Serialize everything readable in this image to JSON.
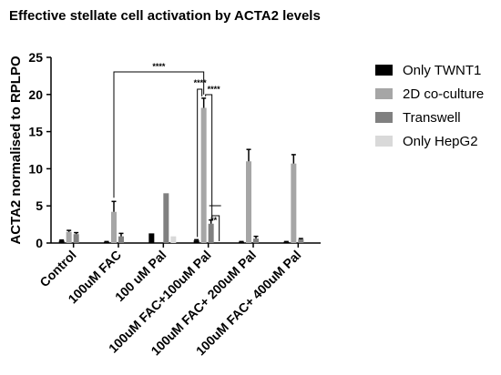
{
  "chart_data": {
    "type": "bar",
    "title": "Effective stellate cell activation by ACTA2 levels",
    "ylabel": "ACTA2 normalised to RPLPO",
    "xlabel": "",
    "ylim": [
      0,
      25
    ],
    "yticks": [
      0,
      5,
      10,
      15,
      20,
      25
    ],
    "grid": false,
    "legend_position": "right",
    "categories": [
      "Control",
      "100uM FAC",
      "100 uM Pal",
      "100uM FAC+100uM Pal",
      "100uM FAC+ 200uM Pal",
      "100uM FAC+ 400uM Pal"
    ],
    "series": [
      {
        "name": "Only TWNT1",
        "color": "#000000",
        "values": [
          0.3,
          0.15,
          1.3,
          0.35,
          0.15,
          0.15
        ],
        "errors": [
          0.1,
          0.05,
          0,
          0.1,
          0.05,
          0.05
        ]
      },
      {
        "name": "2D co-culture",
        "color": "#a6a6a6",
        "values": [
          1.5,
          4.2,
          null,
          18.2,
          11.0,
          10.7
        ],
        "errors": [
          0.2,
          1.4,
          0,
          1.3,
          1.6,
          1.2
        ]
      },
      {
        "name": "Transwell",
        "color": "#808080",
        "values": [
          1.2,
          0.9,
          6.7,
          2.6,
          0.6,
          0.5
        ],
        "errors": [
          0.2,
          0.4,
          0,
          0.5,
          0.3,
          0.1
        ]
      },
      {
        "name": "Only HepG2",
        "color": "#d9d9d9",
        "values": [
          null,
          null,
          0.9,
          null,
          null,
          null
        ],
        "errors": [
          0,
          0,
          0,
          0,
          0,
          0
        ]
      }
    ],
    "annotations": [
      {
        "label": "****"
      },
      {
        "label": "****"
      },
      {
        "label": "****"
      },
      {
        "label": "**"
      }
    ]
  }
}
